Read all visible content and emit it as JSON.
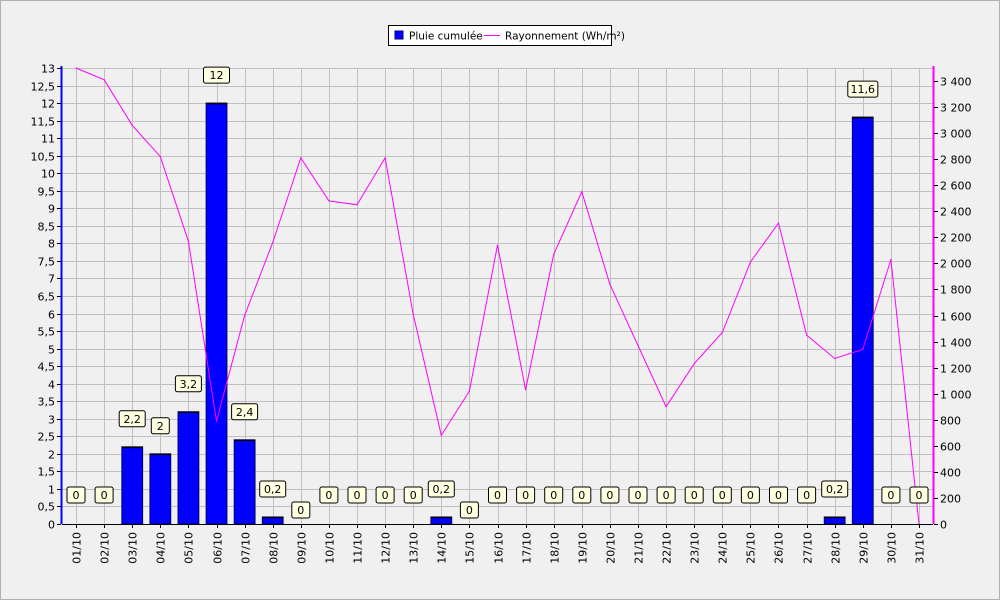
{
  "chart_data": {
    "type": "bar",
    "categories": [
      "01/10",
      "02/10",
      "03/10",
      "04/10",
      "05/10",
      "06/10",
      "07/10",
      "08/10",
      "09/10",
      "10/10",
      "11/10",
      "12/10",
      "13/10",
      "14/10",
      "15/10",
      "16/10",
      "17/10",
      "18/10",
      "19/10",
      "20/10",
      "21/10",
      "22/10",
      "23/10",
      "24/10",
      "25/10",
      "26/10",
      "27/10",
      "28/10",
      "29/10",
      "30/10",
      "31/10"
    ],
    "series": [
      {
        "name": "Pluie cumulée",
        "type": "bar",
        "axis": "left",
        "color": "#0000ff",
        "values": [
          0,
          0,
          2.2,
          2,
          3.2,
          12,
          2.4,
          0.2,
          0,
          0,
          0,
          0,
          0,
          0.2,
          0,
          0,
          0,
          0,
          0,
          0,
          0,
          0,
          0,
          0,
          0,
          0,
          0,
          0.2,
          11.6,
          0,
          0
        ],
        "labels": [
          "0",
          "0",
          "2,2",
          "2",
          "3,2",
          "12",
          "2,4",
          "0,2",
          "0",
          "0",
          "0",
          "0",
          "0",
          "0,2",
          "0",
          "0",
          "0",
          "0",
          "0",
          "0",
          "0",
          "0",
          "0",
          "0",
          "0",
          "0",
          "0",
          "0,2",
          "11,6",
          "0",
          "0"
        ]
      },
      {
        "name": "Rayonnement (Wh/m²)",
        "type": "line",
        "axis": "right",
        "color": "#ff00ff",
        "values": [
          3500,
          3410,
          3060,
          2820,
          2170,
          790,
          1600,
          2160,
          2810,
          2480,
          2450,
          2810,
          1610,
          680,
          1020,
          2140,
          1030,
          2070,
          2550,
          1840,
          1370,
          900,
          1230,
          1470,
          2010,
          2310,
          1450,
          1270,
          1340,
          2030,
          0
        ]
      }
    ],
    "y_left": {
      "min": 0,
      "max": 13,
      "ticks": [
        0,
        0.5,
        1,
        1.5,
        2,
        2.5,
        3,
        3.5,
        4,
        4.5,
        5,
        5.5,
        6,
        6.5,
        7,
        7.5,
        8,
        8.5,
        9,
        9.5,
        10,
        10.5,
        11,
        11.5,
        12,
        12.5,
        13
      ],
      "tick_labels": [
        "0",
        "0,5",
        "1",
        "1,5",
        "2",
        "2,5",
        "3",
        "3,5",
        "4",
        "4,5",
        "5",
        "5,5",
        "6",
        "6,5",
        "7",
        "7,5",
        "8",
        "8,5",
        "9",
        "9,5",
        "10",
        "10,5",
        "11",
        "11,5",
        "12",
        "12,5",
        "13"
      ]
    },
    "y_right": {
      "min": 0,
      "max": 3500,
      "ticks": [
        0,
        200,
        400,
        600,
        800,
        1000,
        1200,
        1400,
        1600,
        1800,
        2000,
        2200,
        2400,
        2600,
        2800,
        3000,
        3200,
        3400
      ],
      "tick_labels": [
        "0",
        "200",
        "400",
        "600",
        "800",
        "1 000",
        "1 200",
        "1 400",
        "1 600",
        "1 800",
        "2 000",
        "2 200",
        "2 400",
        "2 600",
        "2 800",
        "3 000",
        "3 200",
        "3 400"
      ]
    },
    "grid": true,
    "legend_position": "top-center"
  }
}
